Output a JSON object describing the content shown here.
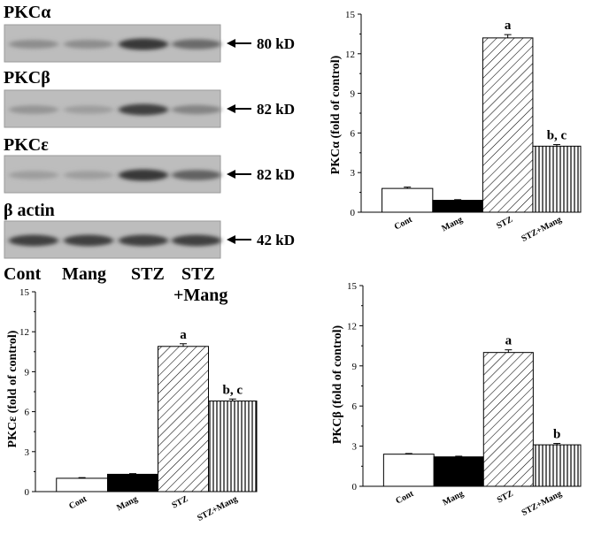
{
  "blot": {
    "bands": [
      {
        "label": "PKCα",
        "kd": "80 kD",
        "intensity": [
          0.35,
          0.35,
          0.85,
          0.55
        ]
      },
      {
        "label": "PKCβ",
        "kd": "82 kD",
        "intensity": [
          0.3,
          0.25,
          0.8,
          0.4
        ]
      },
      {
        "label": "PKCε",
        "kd": "82 kD",
        "intensity": [
          0.25,
          0.25,
          0.85,
          0.6
        ]
      },
      {
        "label": "β actin",
        "kd": "42 kD",
        "intensity": [
          0.8,
          0.8,
          0.8,
          0.8
        ]
      }
    ],
    "lanes": [
      "Cont",
      "Mang",
      "STZ",
      "STZ"
    ],
    "lane_sub": "+Mang"
  },
  "chart_data": [
    {
      "type": "bar",
      "id": "pkc-alpha",
      "ylabel": "PKCα  (fold of control)",
      "categories": [
        "Cont",
        "Mang",
        "STZ",
        "STZ+Mang"
      ],
      "values": [
        1.8,
        0.9,
        13.2,
        5.0
      ],
      "errors": [
        0.1,
        0.05,
        0.25,
        0.12
      ],
      "annotations": [
        "",
        "",
        "a",
        "b, c"
      ],
      "ylim": [
        0,
        15
      ],
      "yticks": [
        0,
        3,
        6,
        9,
        12,
        15
      ]
    },
    {
      "type": "bar",
      "id": "pkc-epsilon",
      "ylabel": "PKCε (fold of control)",
      "categories": [
        "Cont",
        "Mang",
        "STZ",
        "STZ+Mang"
      ],
      "values": [
        1.0,
        1.3,
        10.9,
        6.8
      ],
      "errors": [
        0.05,
        0.05,
        0.2,
        0.15
      ],
      "annotations": [
        "",
        "",
        "a",
        "b, c"
      ],
      "ylim": [
        0,
        15
      ],
      "yticks": [
        0,
        3,
        6,
        9,
        12,
        15
      ]
    },
    {
      "type": "bar",
      "id": "pkc-beta",
      "ylabel": "PKCβ (fold of control)",
      "categories": [
        "Cont",
        "Mang",
        "STZ",
        "STZ+Mang"
      ],
      "values": [
        2.4,
        2.2,
        10.0,
        3.1
      ],
      "errors": [
        0.05,
        0.05,
        0.2,
        0.1
      ],
      "annotations": [
        "",
        "",
        "a",
        "b"
      ],
      "ylim": [
        0,
        15
      ],
      "yticks": [
        0,
        3,
        6,
        9,
        12,
        15
      ]
    }
  ]
}
